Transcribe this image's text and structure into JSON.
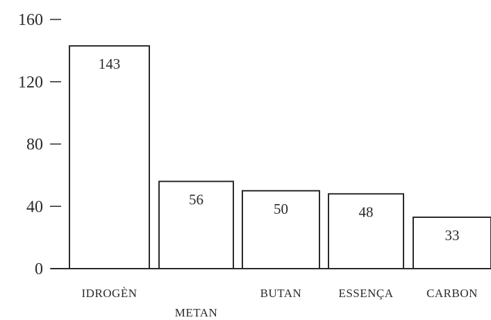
{
  "chart_data": {
    "type": "bar",
    "categories": [
      "IDROGÈN",
      "METAN",
      "BUTAN",
      "ESSENÇA",
      "CARBON"
    ],
    "values": [
      143,
      56,
      50,
      48,
      33
    ],
    "value_labels": [
      "143",
      "56",
      "50",
      "48",
      "33"
    ],
    "yticks": [
      0,
      40,
      80,
      120,
      160
    ],
    "ytick_labels": [
      "0",
      "40",
      "80",
      "120",
      "160"
    ],
    "ylim": [
      0,
      160
    ],
    "grid": false,
    "legend": "none",
    "colors": {
      "bar_fill": "#ffffff",
      "bar_stroke": "#2a2a2a",
      "text": "#2a2a2a"
    }
  }
}
